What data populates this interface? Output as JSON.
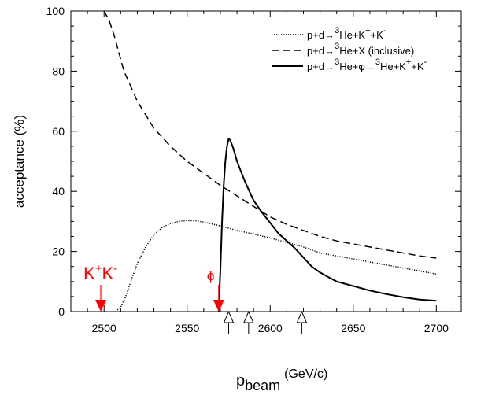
{
  "chart_data": {
    "type": "line",
    "xlabel_main": "p",
    "xlabel_sub": "beam",
    "xlabel_unit": "(GeV/c)",
    "ylabel": "acceptance (%)",
    "xlim": [
      2480,
      2715
    ],
    "ylim": [
      0,
      100
    ],
    "x_ticks": [
      2500,
      2550,
      2600,
      2650,
      2700
    ],
    "y_ticks": [
      0,
      20,
      40,
      60,
      80,
      100
    ],
    "x_tick_labels": [
      "2500",
      "2550",
      "2600",
      "2650",
      "2700"
    ],
    "y_tick_labels": [
      "0",
      "20",
      "40",
      "60",
      "80",
      "100"
    ],
    "series": [
      {
        "name": "p+d→³He+K⁺+K⁻",
        "style": "dotted",
        "points": [
          [
            2507,
            0
          ],
          [
            2510,
            1.5
          ],
          [
            2513,
            5
          ],
          [
            2516,
            10
          ],
          [
            2520,
            16
          ],
          [
            2525,
            21.5
          ],
          [
            2530,
            25.5
          ],
          [
            2535,
            28
          ],
          [
            2540,
            29.3
          ],
          [
            2545,
            30
          ],
          [
            2550,
            30.3
          ],
          [
            2555,
            30.2
          ],
          [
            2560,
            29.8
          ],
          [
            2570,
            28.5
          ],
          [
            2580,
            27
          ],
          [
            2590,
            25.8
          ],
          [
            2600,
            24.5
          ],
          [
            2610,
            23
          ],
          [
            2620,
            21.5
          ],
          [
            2630,
            19.5
          ],
          [
            2640,
            18.5
          ],
          [
            2650,
            17.5
          ],
          [
            2660,
            16.5
          ],
          [
            2670,
            15.5
          ],
          [
            2680,
            14.5
          ],
          [
            2690,
            13.5
          ],
          [
            2700,
            12.5
          ]
        ]
      },
      {
        "name": "p+d→³He+X (inclusive)",
        "style": "dashed",
        "points": [
          [
            2500,
            100
          ],
          [
            2503,
            97
          ],
          [
            2506,
            92
          ],
          [
            2509,
            86
          ],
          [
            2512,
            80
          ],
          [
            2516,
            75
          ],
          [
            2520,
            70
          ],
          [
            2525,
            65.5
          ],
          [
            2530,
            61
          ],
          [
            2540,
            55
          ],
          [
            2550,
            50
          ],
          [
            2560,
            46
          ],
          [
            2570,
            42
          ],
          [
            2580,
            38.5
          ],
          [
            2590,
            35
          ],
          [
            2600,
            31.5
          ],
          [
            2610,
            29
          ],
          [
            2620,
            27
          ],
          [
            2630,
            25
          ],
          [
            2640,
            23.5
          ],
          [
            2650,
            22.5
          ],
          [
            2660,
            21.5
          ],
          [
            2670,
            20.5
          ],
          [
            2680,
            19.5
          ],
          [
            2690,
            18.5
          ],
          [
            2700,
            17.8
          ]
        ]
      },
      {
        "name": "p+d→³He+φ→³He+K⁺+K⁻",
        "style": "solid",
        "points": [
          [
            2569,
            0
          ],
          [
            2570,
            14
          ],
          [
            2571,
            30
          ],
          [
            2572,
            42
          ],
          [
            2573,
            50
          ],
          [
            2574,
            55
          ],
          [
            2575,
            57.5
          ],
          [
            2576,
            57
          ],
          [
            2578,
            54
          ],
          [
            2580,
            50
          ],
          [
            2585,
            43
          ],
          [
            2590,
            37
          ],
          [
            2595,
            33
          ],
          [
            2600,
            29.5
          ],
          [
            2605,
            26
          ],
          [
            2610,
            23.5
          ],
          [
            2615,
            21
          ],
          [
            2620,
            18
          ],
          [
            2625,
            15
          ],
          [
            2630,
            13
          ],
          [
            2635,
            11.5
          ],
          [
            2640,
            10
          ],
          [
            2650,
            8.5
          ],
          [
            2660,
            7
          ],
          [
            2670,
            5.8
          ],
          [
            2680,
            4.8
          ],
          [
            2690,
            4
          ],
          [
            2700,
            3.6
          ]
        ]
      }
    ],
    "legend_position": "top-right",
    "annotations": {
      "kk_label_main": "K",
      "kk_sup_plus": "+",
      "kk_mid": "K",
      "kk_sup_minus": "-",
      "kk_x": 2498,
      "phi_label": "ϕ",
      "phi_x": 2569,
      "open_arrows_x": [
        2575,
        2587,
        2619
      ],
      "annotation_color": "#ff0000"
    }
  },
  "legend": {
    "entries": [
      {
        "style": "dotted",
        "pre": "p+d→",
        "sup1": "3",
        "rest": "He+K",
        "sup2": "+",
        "rest2": "+K",
        "sup3": "-",
        "rest3": "",
        "sup4": "",
        "rest4": "",
        "sup5": "",
        "rest5": ""
      },
      {
        "style": "dashed",
        "pre": "p+d→",
        "sup1": "3",
        "rest": "He+X (inclusive)",
        "sup2": "",
        "rest2": "",
        "sup3": "",
        "rest3": "",
        "sup4": "",
        "rest4": "",
        "sup5": "",
        "rest5": ""
      },
      {
        "style": "solid",
        "pre": "p+d→",
        "sup1": "3",
        "rest": "He+φ→",
        "sup2": "3",
        "rest2": "He+K",
        "sup3": "+",
        "rest3": "+K",
        "sup4": "-",
        "rest4": "",
        "sup5": "",
        "rest5": ""
      }
    ]
  }
}
